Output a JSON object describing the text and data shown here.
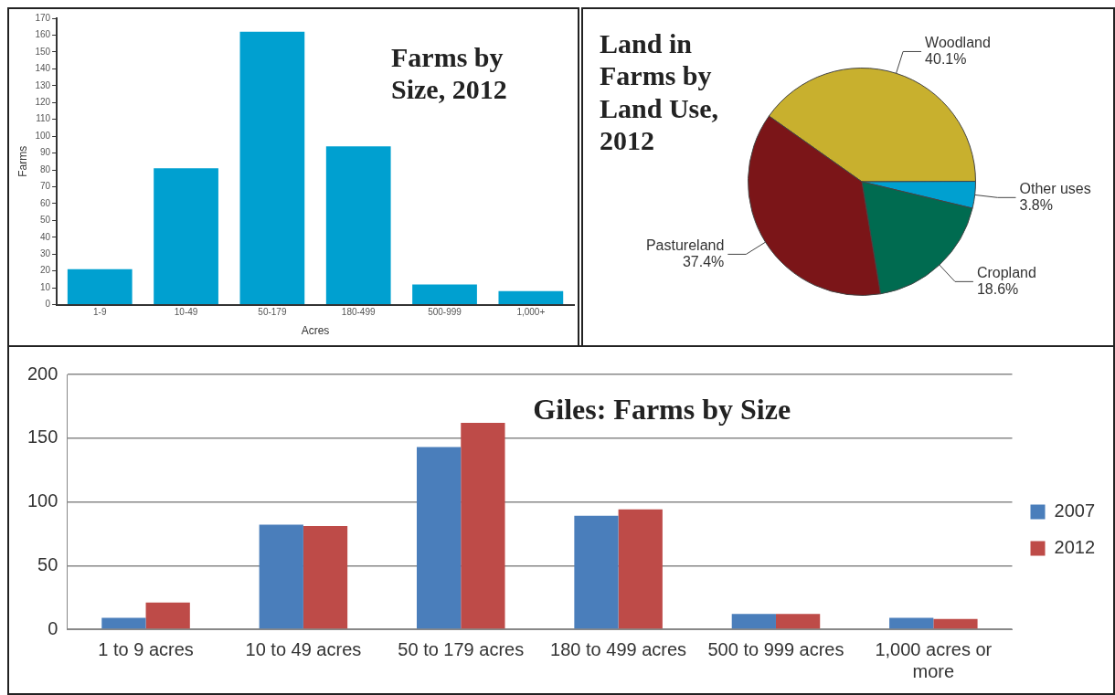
{
  "chart_data": [
    {
      "type": "bar",
      "title": "Farms by Size, 2012",
      "xlabel": "Acres",
      "ylabel": "Farms",
      "categories": [
        "1-9",
        "10-49",
        "50-179",
        "180-499",
        "500-999",
        "1,000+"
      ],
      "values": [
        21,
        81,
        162,
        94,
        12,
        8
      ],
      "color": "#00a0d0",
      "ylim": [
        0,
        170
      ],
      "yticks": [
        0,
        10,
        20,
        30,
        40,
        50,
        60,
        70,
        80,
        90,
        100,
        110,
        120,
        130,
        140,
        150,
        160,
        170
      ],
      "grid": false,
      "legend": false
    },
    {
      "type": "pie",
      "title": "Land in Farms by Land Use, 2012",
      "categories": [
        "Woodland",
        "Other uses",
        "Cropland",
        "Pastureland"
      ],
      "values": [
        40.1,
        3.8,
        18.6,
        37.4
      ],
      "colors": [
        "#c8b02e",
        "#00a0d0",
        "#006b50",
        "#7b1518"
      ],
      "value_labels": [
        "40.1%",
        "3.8%",
        "18.6%",
        "37.4%"
      ],
      "legend": false
    },
    {
      "type": "bar",
      "title": "Giles: Farms by Size",
      "categories": [
        "1 to 9 acres",
        "10 to 49 acres",
        "50 to 179 acres",
        "180 to 499 acres",
        "500 to 999 acres",
        "1,000 acres or more"
      ],
      "series": [
        {
          "name": "2007",
          "color": "#4a7ebb",
          "values": [
            9,
            82,
            143,
            89,
            12,
            9
          ]
        },
        {
          "name": "2012",
          "color": "#be4b48",
          "values": [
            21,
            81,
            162,
            94,
            12,
            8
          ]
        }
      ],
      "ylim": [
        0,
        200
      ],
      "yticks": [
        0,
        50,
        100,
        150,
        200
      ],
      "grid": "y",
      "legend": "right"
    }
  ]
}
